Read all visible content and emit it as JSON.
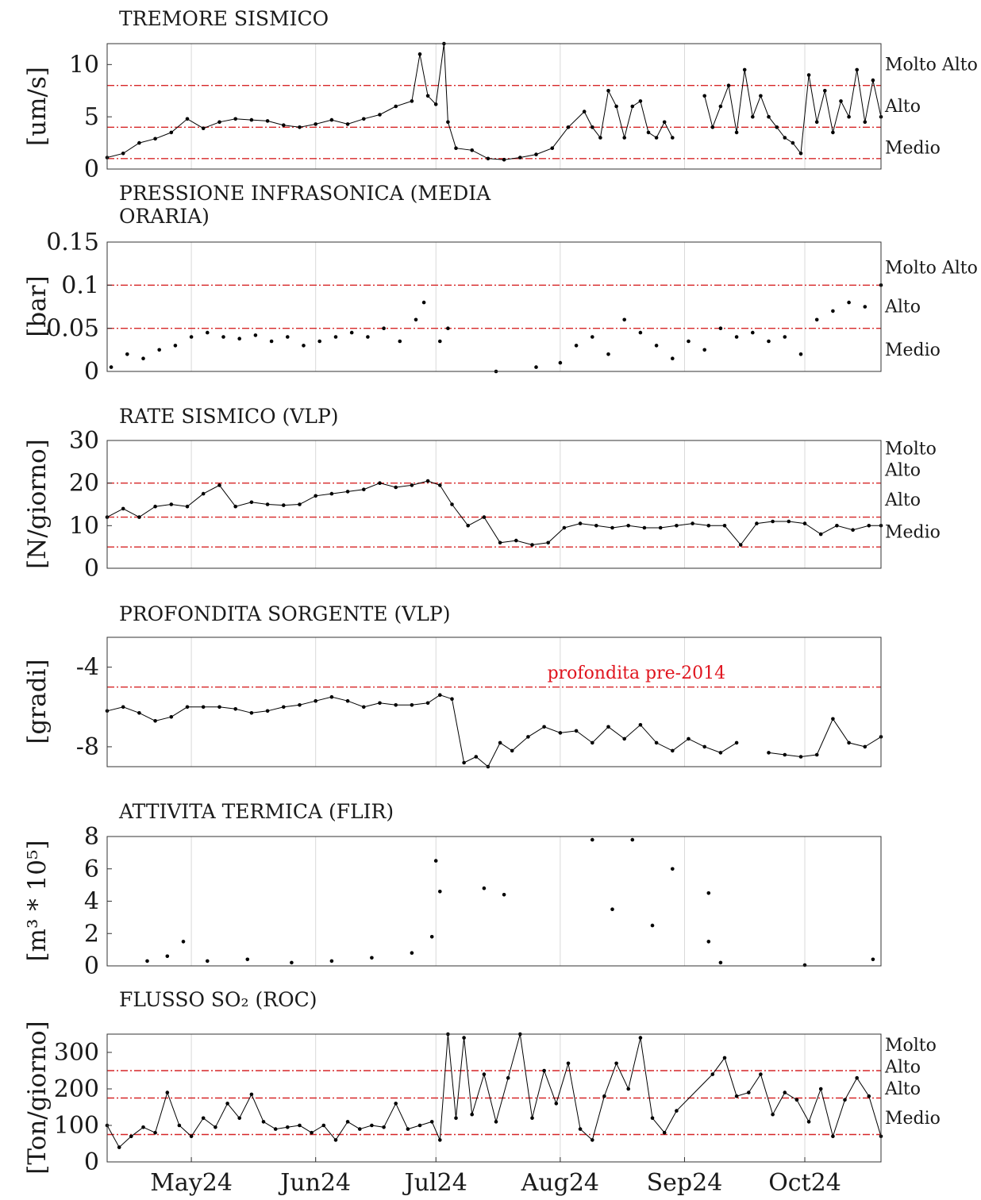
{
  "colors": {
    "threshold": "#d62728",
    "series": "#000000",
    "annotation": "#e0141e",
    "grid": "#d9d9d9"
  },
  "x_axis": {
    "start": "2024-04-10",
    "end": "2024-10-20",
    "ticks": [
      "May24",
      "Jun24",
      "Jul24",
      "Aug24",
      "Sep24",
      "Oct24"
    ],
    "tick_dates": [
      "2024-05-01",
      "2024-06-01",
      "2024-07-01",
      "2024-08-01",
      "2024-09-01",
      "2024-10-01"
    ]
  },
  "chart_data": [
    {
      "type": "line",
      "title": "TREMORE SISMICO",
      "title2": "",
      "ylabel": "[um/s]",
      "ylim": [
        0,
        12
      ],
      "yticks": [
        "0",
        "5",
        "10"
      ],
      "ytick_values": [
        0,
        5,
        10
      ],
      "thresholds": [
        1,
        4,
        8
      ],
      "levels": [
        "Molto Alto",
        "Alto",
        "Medio"
      ],
      "level_values": [
        10,
        6,
        2
      ],
      "markers": true,
      "lines": true,
      "x": [
        "2024-04-10",
        "2024-04-14",
        "2024-04-18",
        "2024-04-22",
        "2024-04-26",
        "2024-04-30",
        "2024-05-04",
        "2024-05-08",
        "2024-05-12",
        "2024-05-16",
        "2024-05-20",
        "2024-05-24",
        "2024-05-28",
        "2024-06-01",
        "2024-06-05",
        "2024-06-09",
        "2024-06-13",
        "2024-06-17",
        "2024-06-21",
        "2024-06-25",
        "2024-06-27",
        "2024-06-29",
        "2024-07-01",
        "2024-07-03",
        "2024-07-04",
        "2024-07-06",
        "2024-07-10",
        "2024-07-14",
        "2024-07-18",
        "2024-07-22",
        "2024-07-26",
        "2024-07-30",
        "2024-08-03",
        "2024-08-07",
        "2024-08-09",
        "2024-08-11",
        "2024-08-13",
        "2024-08-15",
        "2024-08-17",
        "2024-08-19",
        "2024-08-21",
        "2024-08-23",
        "2024-08-25",
        "2024-08-27",
        "2024-08-29",
        "2024-08-31",
        "2024-09-06",
        "2024-09-08",
        "2024-09-10",
        "2024-09-12",
        "2024-09-14",
        "2024-09-16",
        "2024-09-18",
        "2024-09-20",
        "2024-09-22",
        "2024-09-24",
        "2024-09-26",
        "2024-09-28",
        "2024-09-30",
        "2024-10-02",
        "2024-10-04",
        "2024-10-06",
        "2024-10-08",
        "2024-10-10",
        "2024-10-12",
        "2024-10-14",
        "2024-10-16",
        "2024-10-18",
        "2024-10-20"
      ],
      "y": [
        1.1,
        1.5,
        2.5,
        2.9,
        3.5,
        4.8,
        3.9,
        4.5,
        4.8,
        4.7,
        4.6,
        4.2,
        4.0,
        4.3,
        4.7,
        4.3,
        4.8,
        5.2,
        6.0,
        6.5,
        11.0,
        7.0,
        6.2,
        12.0,
        4.5,
        2.0,
        1.8,
        1.0,
        0.9,
        1.1,
        1.4,
        2.0,
        4.0,
        5.5,
        4.0,
        3.0,
        7.5,
        6.0,
        3.0,
        6.0,
        6.5,
        3.5,
        3.0,
        4.5,
        3.0,
        null,
        7.0,
        4.0,
        6.0,
        8.0,
        3.5,
        9.5,
        5.0,
        7.0,
        5.0,
        4.0,
        3.0,
        2.5,
        1.5,
        9.0,
        4.5,
        7.5,
        3.5,
        6.5,
        5.0,
        9.5,
        4.5,
        8.5,
        5.0
      ]
    },
    {
      "type": "scatter",
      "title": "PRESSIONE INFRASONICA (MEDIA",
      "title2": "ORARIA)",
      "ylabel": "[bar]",
      "ylim": [
        0,
        0.15
      ],
      "yticks": [
        "0",
        "0.05",
        "0.1",
        "0.15"
      ],
      "ytick_values": [
        0,
        0.05,
        0.1,
        0.15
      ],
      "thresholds": [
        0.05,
        0.1
      ],
      "levels": [
        "Molto Alto",
        "Alto",
        "Medio"
      ],
      "level_values": [
        0.12,
        0.075,
        0.025
      ],
      "markers": true,
      "lines": false,
      "x": [
        "2024-04-11",
        "2024-04-15",
        "2024-04-19",
        "2024-04-23",
        "2024-04-27",
        "2024-05-01",
        "2024-05-05",
        "2024-05-09",
        "2024-05-13",
        "2024-05-17",
        "2024-05-21",
        "2024-05-25",
        "2024-05-29",
        "2024-06-02",
        "2024-06-06",
        "2024-06-10",
        "2024-06-14",
        "2024-06-18",
        "2024-06-22",
        "2024-06-26",
        "2024-06-28",
        "2024-07-02",
        "2024-07-04",
        "2024-07-16",
        "2024-07-26",
        "2024-08-01",
        "2024-08-05",
        "2024-08-09",
        "2024-08-13",
        "2024-08-17",
        "2024-08-21",
        "2024-08-25",
        "2024-08-29",
        "2024-09-02",
        "2024-09-06",
        "2024-09-10",
        "2024-09-14",
        "2024-09-18",
        "2024-09-22",
        "2024-09-26",
        "2024-09-30",
        "2024-10-04",
        "2024-10-08",
        "2024-10-12",
        "2024-10-16",
        "2024-10-20"
      ],
      "y": [
        0.005,
        0.02,
        0.015,
        0.025,
        0.03,
        0.04,
        0.045,
        0.04,
        0.038,
        0.042,
        0.035,
        0.04,
        0.03,
        0.035,
        0.04,
        0.045,
        0.04,
        0.05,
        0.035,
        0.06,
        0.08,
        0.035,
        0.05,
        0.0,
        0.005,
        0.01,
        0.03,
        0.04,
        0.02,
        0.06,
        0.045,
        0.03,
        0.015,
        0.035,
        0.025,
        0.05,
        0.04,
        0.045,
        0.035,
        0.04,
        0.02,
        0.06,
        0.07,
        0.08,
        0.075,
        0.1
      ]
    },
    {
      "type": "line",
      "title": "RATE SISMICO (VLP)",
      "title2": "",
      "ylabel": "[N/giorno]",
      "ylim": [
        0,
        30
      ],
      "yticks": [
        "0",
        "10",
        "20",
        "30"
      ],
      "ytick_values": [
        0,
        10,
        20,
        30
      ],
      "thresholds": [
        5,
        12,
        20
      ],
      "levels": [
        "Molto",
        "Alto",
        "Alto",
        "Medio"
      ],
      "level_values": [
        28,
        23,
        16,
        8.5
      ],
      "markers": true,
      "lines": true,
      "x": [
        "2024-04-10",
        "2024-04-14",
        "2024-04-18",
        "2024-04-22",
        "2024-04-26",
        "2024-04-30",
        "2024-05-04",
        "2024-05-08",
        "2024-05-12",
        "2024-05-16",
        "2024-05-20",
        "2024-05-24",
        "2024-05-28",
        "2024-06-01",
        "2024-06-05",
        "2024-06-09",
        "2024-06-13",
        "2024-06-17",
        "2024-06-21",
        "2024-06-25",
        "2024-06-29",
        "2024-07-02",
        "2024-07-05",
        "2024-07-09",
        "2024-07-13",
        "2024-07-17",
        "2024-07-21",
        "2024-07-25",
        "2024-07-29",
        "2024-08-02",
        "2024-08-06",
        "2024-08-10",
        "2024-08-14",
        "2024-08-18",
        "2024-08-22",
        "2024-08-26",
        "2024-08-30",
        "2024-09-03",
        "2024-09-07",
        "2024-09-11",
        "2024-09-15",
        "2024-09-19",
        "2024-09-23",
        "2024-09-27",
        "2024-10-01",
        "2024-10-05",
        "2024-10-09",
        "2024-10-13",
        "2024-10-17",
        "2024-10-20"
      ],
      "y": [
        12,
        14,
        12,
        14.5,
        15,
        14.5,
        17.5,
        19.5,
        14.5,
        15.5,
        15,
        14.8,
        15,
        17,
        17.5,
        18,
        18.5,
        20,
        19,
        19.5,
        20.5,
        19.5,
        15,
        10,
        12,
        6,
        6.5,
        5.5,
        6,
        9.5,
        10.5,
        10,
        9.5,
        10,
        9.5,
        9.5,
        10,
        10.5,
        10,
        10,
        5.5,
        10.5,
        11,
        11,
        10.5,
        8,
        10,
        9,
        10,
        10
      ]
    },
    {
      "type": "line",
      "title": "PROFONDITA SORGENTE (VLP)",
      "title2": "",
      "ylabel": "[gradi]",
      "ylim": [
        -9,
        -2.5
      ],
      "yticks": [
        "-4",
        "-8"
      ],
      "ytick_values": [
        -4,
        -8
      ],
      "thresholds": [
        -5
      ],
      "annotation": "profondita pre-2014",
      "annotation_x": "2024-08-20",
      "annotation_y": -4.3,
      "markers": true,
      "lines": true,
      "x": [
        "2024-04-10",
        "2024-04-14",
        "2024-04-18",
        "2024-04-22",
        "2024-04-26",
        "2024-04-30",
        "2024-05-04",
        "2024-05-08",
        "2024-05-12",
        "2024-05-16",
        "2024-05-20",
        "2024-05-24",
        "2024-05-28",
        "2024-06-01",
        "2024-06-05",
        "2024-06-09",
        "2024-06-13",
        "2024-06-17",
        "2024-06-21",
        "2024-06-25",
        "2024-06-29",
        "2024-07-02",
        "2024-07-05",
        "2024-07-08",
        "2024-07-11",
        "2024-07-14",
        "2024-07-17",
        "2024-07-20",
        "2024-07-24",
        "2024-07-28",
        "2024-08-01",
        "2024-08-05",
        "2024-08-09",
        "2024-08-13",
        "2024-08-17",
        "2024-08-21",
        "2024-08-25",
        "2024-08-29",
        "2024-09-02",
        "2024-09-06",
        "2024-09-10",
        "2024-09-14",
        "2024-09-18",
        "2024-09-22",
        "2024-09-26",
        "2024-09-30",
        "2024-10-04",
        "2024-10-08",
        "2024-10-12",
        "2024-10-16",
        "2024-10-20"
      ],
      "y": [
        -6.2,
        -6.0,
        -6.3,
        -6.7,
        -6.5,
        -6.0,
        -6.0,
        -6.0,
        -6.1,
        -6.3,
        -6.2,
        -6.0,
        -5.9,
        -5.7,
        -5.5,
        -5.7,
        -6.0,
        -5.8,
        -5.9,
        -5.9,
        -5.8,
        -5.4,
        -5.6,
        -8.8,
        -8.5,
        -9.0,
        -7.8,
        -8.2,
        -7.5,
        -7.0,
        -7.3,
        -7.2,
        -7.8,
        -7.0,
        -7.6,
        -6.9,
        -7.8,
        -8.2,
        -7.6,
        -8.0,
        -8.3,
        -7.8,
        null,
        -8.3,
        -8.4,
        -8.5,
        -8.4,
        -6.6,
        -7.8,
        -8.0,
        -7.5
      ]
    },
    {
      "type": "scatter",
      "title": "ATTIVITA TERMICA (FLIR)",
      "title2": "",
      "ylabel": "[m³ * 10⁵]",
      "ylim": [
        0,
        8
      ],
      "yticks": [
        "0",
        "2",
        "4",
        "6",
        "8"
      ],
      "ytick_values": [
        0,
        2,
        4,
        6,
        8
      ],
      "thresholds": [],
      "markers": true,
      "lines": false,
      "x": [
        "2024-04-20",
        "2024-04-25",
        "2024-04-29",
        "2024-05-05",
        "2024-05-15",
        "2024-05-26",
        "2024-06-05",
        "2024-06-15",
        "2024-06-25",
        "2024-06-30",
        "2024-07-01",
        "2024-07-02",
        "2024-07-13",
        "2024-07-18",
        "2024-08-09",
        "2024-08-14",
        "2024-08-19",
        "2024-08-24",
        "2024-08-29",
        "2024-09-07",
        "2024-09-07",
        "2024-09-10",
        "2024-10-01",
        "2024-10-18"
      ],
      "y": [
        0.3,
        0.6,
        1.5,
        0.3,
        0.4,
        0.2,
        0.3,
        0.5,
        0.8,
        1.8,
        6.5,
        4.6,
        4.8,
        4.4,
        7.8,
        3.5,
        7.8,
        2.5,
        6.0,
        4.5,
        1.5,
        0.2,
        0.05,
        0.4
      ]
    },
    {
      "type": "line",
      "title": "FLUSSO SO₂ (ROC)",
      "title2": "",
      "ylabel": "[Ton/giorno]",
      "ylim": [
        0,
        350
      ],
      "yticks": [
        "0",
        "100",
        "200",
        "300"
      ],
      "ytick_values": [
        0,
        100,
        200,
        300
      ],
      "thresholds": [
        75,
        175,
        250
      ],
      "levels": [
        "Molto",
        "Alto",
        "Alto",
        "Medio"
      ],
      "level_values": [
        320,
        260,
        200,
        120
      ],
      "markers": true,
      "lines": true,
      "x": [
        "2024-04-10",
        "2024-04-13",
        "2024-04-16",
        "2024-04-19",
        "2024-04-22",
        "2024-04-25",
        "2024-04-28",
        "2024-05-01",
        "2024-05-04",
        "2024-05-07",
        "2024-05-10",
        "2024-05-13",
        "2024-05-16",
        "2024-05-19",
        "2024-05-22",
        "2024-05-25",
        "2024-05-28",
        "2024-05-31",
        "2024-06-03",
        "2024-06-06",
        "2024-06-09",
        "2024-06-12",
        "2024-06-15",
        "2024-06-18",
        "2024-06-21",
        "2024-06-24",
        "2024-06-27",
        "2024-06-30",
        "2024-07-02",
        "2024-07-04",
        "2024-07-06",
        "2024-07-08",
        "2024-07-10",
        "2024-07-13",
        "2024-07-16",
        "2024-07-19",
        "2024-07-22",
        "2024-07-25",
        "2024-07-28",
        "2024-07-31",
        "2024-08-03",
        "2024-08-06",
        "2024-08-09",
        "2024-08-12",
        "2024-08-15",
        "2024-08-18",
        "2024-08-21",
        "2024-08-24",
        "2024-08-27",
        "2024-08-30",
        "2024-09-08",
        "2024-09-11",
        "2024-09-14",
        "2024-09-17",
        "2024-09-20",
        "2024-09-23",
        "2024-09-26",
        "2024-09-29",
        "2024-10-02",
        "2024-10-05",
        "2024-10-08",
        "2024-10-11",
        "2024-10-14",
        "2024-10-17",
        "2024-10-20"
      ],
      "y": [
        100,
        40,
        70,
        95,
        80,
        190,
        100,
        70,
        120,
        95,
        160,
        120,
        185,
        110,
        90,
        95,
        100,
        80,
        100,
        60,
        110,
        90,
        100,
        95,
        160,
        90,
        100,
        110,
        60,
        350,
        120,
        340,
        130,
        240,
        110,
        230,
        350,
        120,
        250,
        160,
        270,
        90,
        60,
        180,
        270,
        200,
        340,
        120,
        80,
        140,
        240,
        285,
        180,
        190,
        240,
        130,
        190,
        170,
        110,
        200,
        70,
        170,
        230,
        180,
        70
      ]
    }
  ]
}
